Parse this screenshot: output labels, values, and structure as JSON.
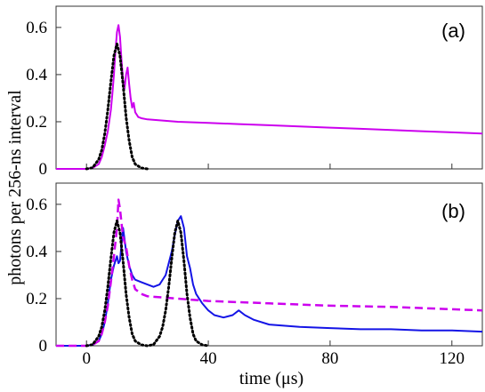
{
  "chart_data": {
    "type": "line",
    "ylabel": "photons per 256-ns interval",
    "xlabel": "time (μs)",
    "xlim": [
      -10,
      130
    ],
    "ylim": [
      0,
      0.69
    ],
    "xticks": [
      0,
      40,
      80,
      120
    ],
    "yticks": [
      0,
      0.2,
      0.4,
      0.6
    ],
    "xtick_labels": [
      "0",
      "40",
      "80",
      "120"
    ],
    "ytick_labels": [
      "0",
      "0.2",
      "0.4",
      "0.6"
    ],
    "panels": [
      {
        "label": "(a)",
        "series": [
          {
            "color": "#cc00ee",
            "style": "solid",
            "width": 2,
            "x": [
              -10,
              0,
              2,
              4,
              5,
              6,
              7,
              8,
              8.5,
              9,
              9.5,
              10,
              10.5,
              11,
              11.5,
              12,
              12.5,
              13,
              13.5,
              14,
              14.5,
              15,
              15.5,
              16,
              17,
              18,
              20,
              25,
              30,
              40,
              50,
              60,
              70,
              80,
              90,
              100,
              110,
              120,
              130
            ],
            "y": [
              0.0,
              0.0,
              0.004,
              0.02,
              0.05,
              0.1,
              0.16,
              0.25,
              0.32,
              0.4,
              0.5,
              0.58,
              0.61,
              0.56,
              0.46,
              0.38,
              0.34,
              0.4,
              0.43,
              0.36,
              0.3,
              0.26,
              0.28,
              0.24,
              0.22,
              0.215,
              0.21,
              0.205,
              0.2,
              0.195,
              0.19,
              0.185,
              0.18,
              0.175,
              0.17,
              0.165,
              0.16,
              0.155,
              0.15
            ]
          },
          {
            "color": "#000000",
            "style": "dotted",
            "width": 3,
            "x": [
              0,
              2,
              4,
              5,
              6,
              7,
              8,
              9,
              10,
              11,
              12,
              13,
              14,
              15,
              16,
              18,
              20
            ],
            "y": [
              0.0,
              0.005,
              0.04,
              0.08,
              0.15,
              0.25,
              0.37,
              0.48,
              0.53,
              0.48,
              0.36,
              0.22,
              0.12,
              0.05,
              0.02,
              0.004,
              0.0
            ]
          }
        ]
      },
      {
        "label": "(b)",
        "series": [
          {
            "color": "#1414e6",
            "style": "solid",
            "width": 2,
            "x": [
              -10,
              0,
              2,
              4,
              5,
              6,
              7,
              8,
              9,
              10,
              10.5,
              11,
              12,
              13,
              14,
              15,
              16,
              18,
              20,
              22,
              24,
              25,
              26,
              27,
              28,
              29,
              30,
              31,
              32,
              33,
              34,
              35,
              36,
              38,
              40,
              42,
              45,
              48,
              50,
              52,
              55,
              60,
              70,
              80,
              90,
              100,
              110,
              120,
              130
            ],
            "y": [
              0.0,
              0.0,
              0.004,
              0.02,
              0.05,
              0.1,
              0.18,
              0.28,
              0.34,
              0.38,
              0.35,
              0.36,
              0.5,
              0.4,
              0.34,
              0.3,
              0.28,
              0.27,
              0.26,
              0.25,
              0.26,
              0.28,
              0.3,
              0.35,
              0.4,
              0.47,
              0.53,
              0.55,
              0.5,
              0.38,
              0.33,
              0.26,
              0.22,
              0.18,
              0.15,
              0.13,
              0.12,
              0.13,
              0.15,
              0.13,
              0.11,
              0.09,
              0.08,
              0.075,
              0.07,
              0.07,
              0.065,
              0.065,
              0.06
            ]
          },
          {
            "color": "#cc00ee",
            "style": "dashed",
            "width": 2.5,
            "x": [
              -10,
              0,
              2,
              4,
              5,
              6,
              7,
              8,
              9,
              10,
              10.5,
              11,
              12,
              13,
              14,
              15,
              16,
              18,
              20,
              25,
              30,
              40,
              60,
              80,
              100,
              120,
              130
            ],
            "y": [
              0.0,
              0.0,
              0.004,
              0.02,
              0.05,
              0.1,
              0.17,
              0.27,
              0.38,
              0.5,
              0.62,
              0.58,
              0.46,
              0.42,
              0.34,
              0.28,
              0.24,
              0.22,
              0.21,
              0.205,
              0.2,
              0.19,
              0.18,
              0.17,
              0.165,
              0.155,
              0.15
            ]
          },
          {
            "color": "#000000",
            "style": "dotted",
            "width": 3,
            "x": [
              0,
              2,
              4,
              5,
              6,
              7,
              8,
              9,
              10,
              11,
              12,
              13,
              14,
              15,
              16,
              18,
              20,
              22,
              24,
              25,
              26,
              27,
              28,
              29,
              30,
              31,
              32,
              33,
              34,
              35,
              36,
              38,
              40
            ],
            "y": [
              0.0,
              0.005,
              0.04,
              0.08,
              0.15,
              0.25,
              0.37,
              0.48,
              0.53,
              0.48,
              0.36,
              0.22,
              0.12,
              0.05,
              0.02,
              0.004,
              0.0,
              0.005,
              0.04,
              0.08,
              0.15,
              0.25,
              0.37,
              0.48,
              0.53,
              0.48,
              0.36,
              0.22,
              0.12,
              0.05,
              0.02,
              0.004,
              0.0
            ]
          }
        ]
      }
    ]
  }
}
